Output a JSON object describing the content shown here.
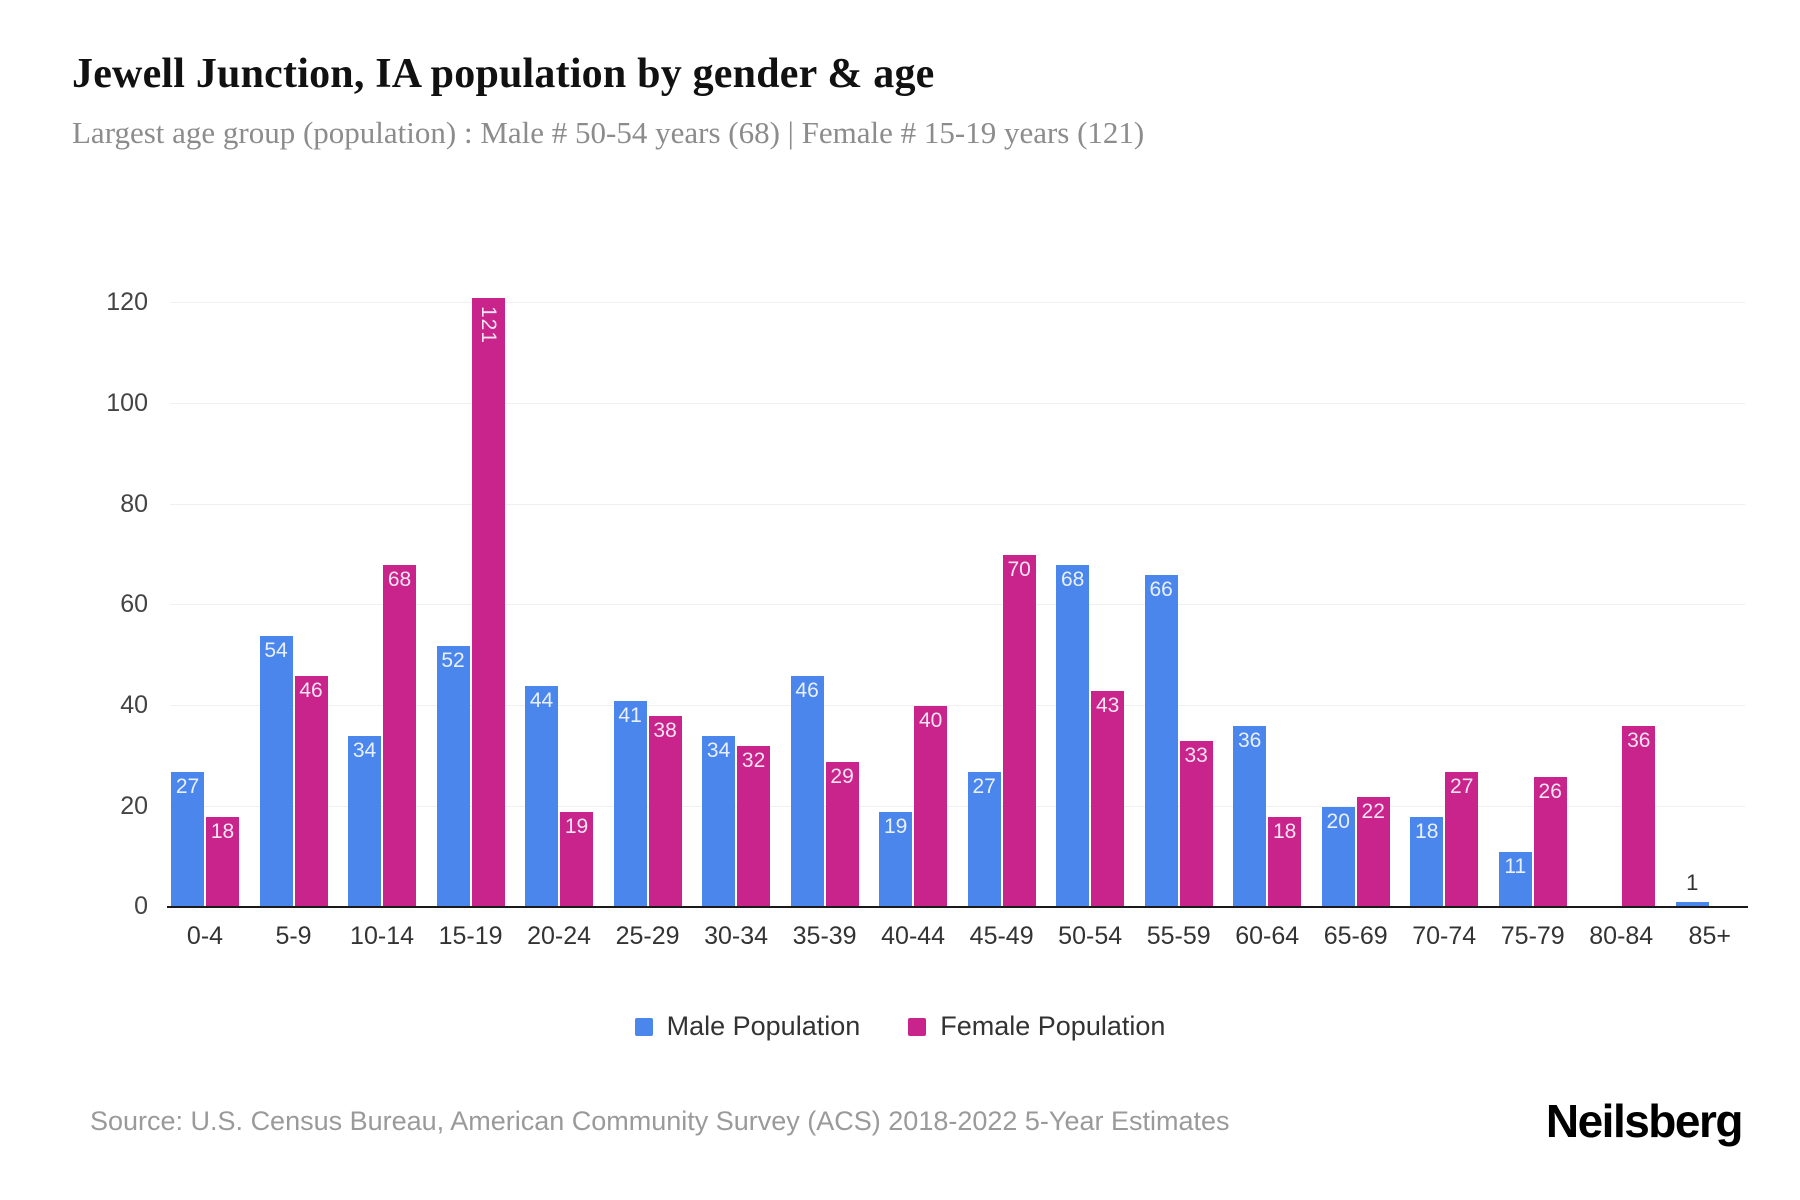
{
  "header": {
    "title": "Jewell Junction, IA population by gender & age",
    "subtitle": "Largest age group (population) : Male # 50-54 years (68) | Female # 15-19 years (121)"
  },
  "chart_data": {
    "type": "bar",
    "title": "Jewell Junction, IA population by gender & age",
    "categories": [
      "0-4",
      "5-9",
      "10-14",
      "15-19",
      "20-24",
      "25-29",
      "30-34",
      "35-39",
      "40-44",
      "45-49",
      "50-54",
      "55-59",
      "60-64",
      "65-69",
      "70-74",
      "75-79",
      "80-84",
      "85+"
    ],
    "series": [
      {
        "name": "Male Population",
        "color": "#4b86ec",
        "values": [
          27,
          54,
          34,
          52,
          44,
          41,
          34,
          46,
          19,
          27,
          68,
          66,
          36,
          20,
          18,
          11,
          0,
          1
        ]
      },
      {
        "name": "Female Population",
        "color": "#c9238c",
        "values": [
          18,
          46,
          68,
          121,
          19,
          38,
          32,
          29,
          40,
          70,
          43,
          33,
          18,
          22,
          27,
          26,
          36,
          0
        ]
      }
    ],
    "xlabel": "",
    "ylabel": "",
    "ylim": [
      0,
      120
    ],
    "yticks": [
      0,
      20,
      40,
      60,
      80,
      100,
      120
    ],
    "grid": true,
    "legend_position": "bottom",
    "gridline_color": "#f0f0f0",
    "axis_line_color": "#1a1a1a"
  },
  "footer": {
    "source": "Source: U.S. Census Bureau, American Community Survey (ACS) 2018-2022 5-Year Estimates",
    "logo": "Neilsberg"
  }
}
